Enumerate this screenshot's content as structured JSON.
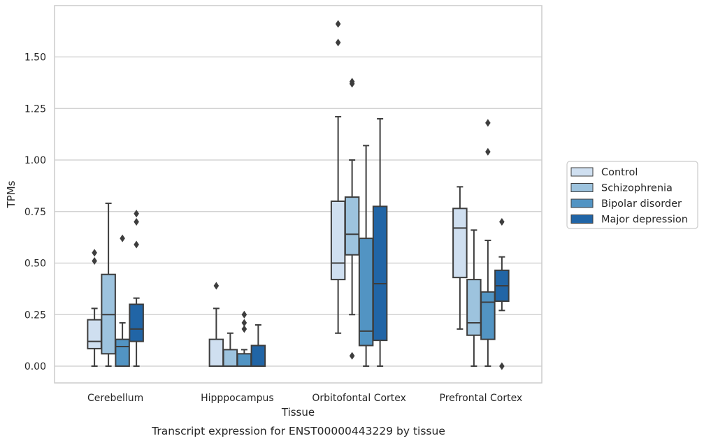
{
  "chart_data": {
    "type": "box",
    "title": "",
    "caption": "Transcript expression for ENST00000443229 by tissue",
    "xlabel": "Tissue",
    "ylabel": "TPMs",
    "ylim": [
      -0.08,
      1.75
    ],
    "yticks": [
      0.0,
      0.25,
      0.5,
      0.75,
      1.0,
      1.25,
      1.5
    ],
    "ytick_labels": [
      "0.00",
      "0.25",
      "0.50",
      "0.75",
      "1.00",
      "1.25",
      "1.50"
    ],
    "grid": "horizontal",
    "legend_position": "right",
    "categories": [
      "Cerebellum",
      "Hipppocampus",
      "Orbitofontal Cortex",
      "Prefrontal Cortex"
    ],
    "series": [
      {
        "name": "Control",
        "color": "#cfdff0",
        "boxes": [
          {
            "whislo": 0.0,
            "q1": 0.085,
            "med": 0.12,
            "q3": 0.225,
            "whishi": 0.28,
            "fliers": [
              0.51,
              0.55
            ]
          },
          {
            "whislo": 0.0,
            "q1": 0.0,
            "med": 0.0,
            "q3": 0.13,
            "whishi": 0.28,
            "fliers": [
              0.39
            ]
          },
          {
            "whislo": 0.16,
            "q1": 0.42,
            "med": 0.5,
            "q3": 0.8,
            "whishi": 1.21,
            "fliers": [
              1.57,
              1.66
            ]
          },
          {
            "whislo": 0.18,
            "q1": 0.43,
            "med": 0.67,
            "q3": 0.765,
            "whishi": 0.87,
            "fliers": []
          }
        ]
      },
      {
        "name": "Schizophrenia",
        "color": "#9dc3de",
        "boxes": [
          {
            "whislo": 0.0,
            "q1": 0.06,
            "med": 0.25,
            "q3": 0.445,
            "whishi": 0.79,
            "fliers": []
          },
          {
            "whislo": 0.0,
            "q1": 0.0,
            "med": 0.0,
            "q3": 0.08,
            "whishi": 0.16,
            "fliers": []
          },
          {
            "whislo": 0.25,
            "q1": 0.54,
            "med": 0.64,
            "q3": 0.82,
            "whishi": 1.0,
            "fliers": [
              0.05,
              1.37,
              1.38
            ]
          },
          {
            "whislo": 0.0,
            "q1": 0.15,
            "med": 0.21,
            "q3": 0.42,
            "whishi": 0.66,
            "fliers": []
          }
        ]
      },
      {
        "name": "Bipolar disorder",
        "color": "#5294c3",
        "boxes": [
          {
            "whislo": 0.0,
            "q1": 0.0,
            "med": 0.095,
            "q3": 0.13,
            "whishi": 0.21,
            "fliers": [
              0.62
            ]
          },
          {
            "whislo": 0.0,
            "q1": 0.0,
            "med": 0.0,
            "q3": 0.06,
            "whishi": 0.08,
            "fliers": [
              0.18,
              0.21,
              0.25
            ]
          },
          {
            "whislo": 0.0,
            "q1": 0.1,
            "med": 0.17,
            "q3": 0.62,
            "whishi": 1.07,
            "fliers": []
          },
          {
            "whislo": 0.0,
            "q1": 0.13,
            "med": 0.31,
            "q3": 0.36,
            "whishi": 0.61,
            "fliers": [
              1.04,
              1.18
            ]
          }
        ]
      },
      {
        "name": "Major depression",
        "color": "#2165a6",
        "boxes": [
          {
            "whislo": 0.0,
            "q1": 0.12,
            "med": 0.18,
            "q3": 0.3,
            "whishi": 0.33,
            "fliers": [
              0.59,
              0.7,
              0.74
            ]
          },
          {
            "whislo": 0.0,
            "q1": 0.0,
            "med": 0.0,
            "q3": 0.1,
            "whishi": 0.2,
            "fliers": []
          },
          {
            "whislo": 0.0,
            "q1": 0.125,
            "med": 0.4,
            "q3": 0.775,
            "whishi": 1.2,
            "fliers": []
          },
          {
            "whislo": 0.27,
            "q1": 0.315,
            "med": 0.39,
            "q3": 0.465,
            "whishi": 0.53,
            "fliers": [
              0.0,
              0.7
            ]
          }
        ]
      }
    ]
  }
}
